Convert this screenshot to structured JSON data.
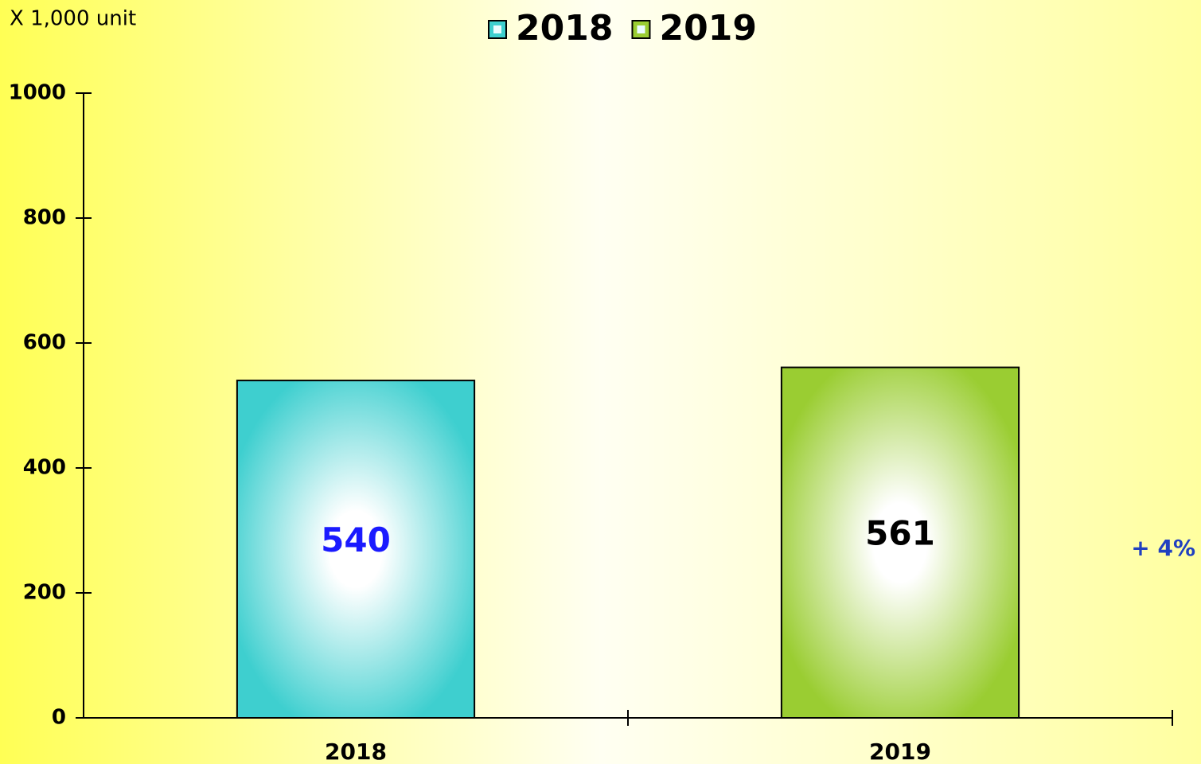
{
  "chart_data": {
    "type": "bar",
    "unit_label": "X 1,000 unit",
    "annotation": "+  4%",
    "categories": [
      "2018",
      "2019"
    ],
    "series": [
      {
        "name": "2018",
        "color": "#3ecfcf",
        "label_color": "#1a1aff",
        "values": [
          540,
          null
        ]
      },
      {
        "name": "2019",
        "color": "#9acd32",
        "label_color": "#000000",
        "values": [
          null,
          561
        ]
      }
    ],
    "ylim": [
      0,
      1000
    ],
    "yticks": [
      0,
      200,
      400,
      600,
      800,
      1000
    ],
    "grid": false,
    "legend": "top"
  }
}
